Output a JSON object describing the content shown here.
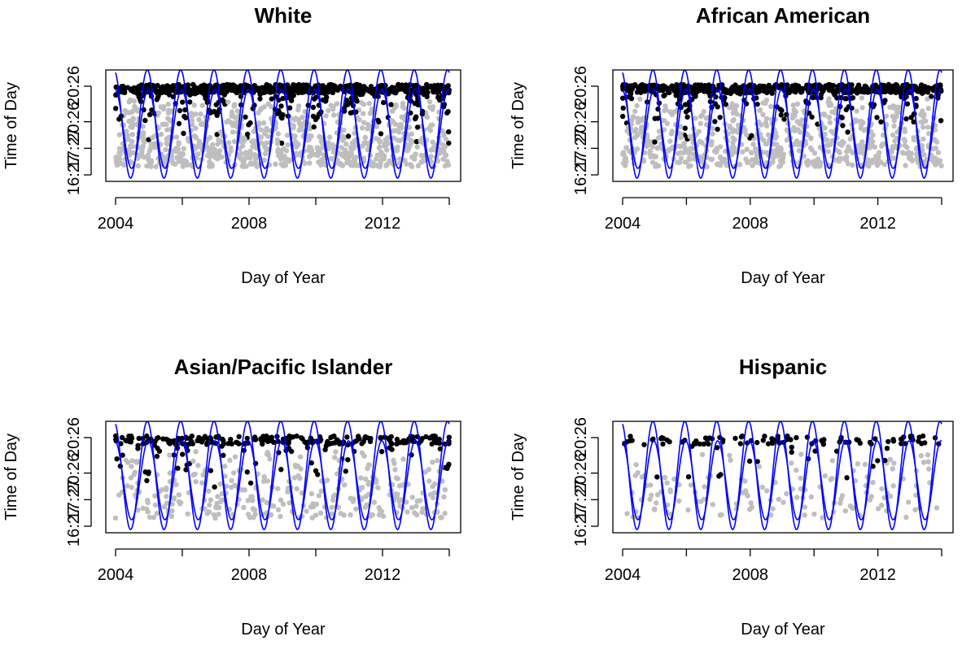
{
  "chart_data": [
    {
      "type": "scatter",
      "title": "White",
      "xlabel": "Day of Year",
      "ylabel": "Time of Day",
      "x_ticks": [
        "2004",
        "2008",
        "2012"
      ],
      "y_ticks": [
        "16:27",
        "20:26"
      ],
      "y_ticks_inner": [
        "17:27",
        "20:26"
      ],
      "xlim": [
        2004,
        2014
      ],
      "grid": false,
      "series": [
        {
          "color": "#000000",
          "density": 0.95
        },
        {
          "color": "#bebebe",
          "density": 0.95
        },
        {
          "color": "#0000ff"
        }
      ]
    },
    {
      "type": "scatter",
      "title": "African American",
      "xlabel": "Day of Year",
      "ylabel": "Time of Day",
      "x_ticks": [
        "2004",
        "2008",
        "2012"
      ],
      "y_ticks": [
        "16:27",
        "20:26"
      ],
      "y_ticks_inner": [
        "17:27",
        "20:26"
      ],
      "xlim": [
        2004,
        2014
      ],
      "grid": false,
      "series": [
        {
          "color": "#000000",
          "density": 0.8
        },
        {
          "color": "#bebebe",
          "density": 0.8
        },
        {
          "color": "#0000ff"
        }
      ]
    },
    {
      "type": "scatter",
      "title": "Asian/Pacific Islander",
      "xlabel": "Day of Year",
      "ylabel": "Time of Day",
      "x_ticks": [
        "2004",
        "2008",
        "2012"
      ],
      "y_ticks": [
        "16:27",
        "20:26"
      ],
      "y_ticks_inner": [
        "17:27",
        "20:26"
      ],
      "xlim": [
        2004,
        2014
      ],
      "grid": false,
      "series": [
        {
          "color": "#000000",
          "density": 0.35
        },
        {
          "color": "#bebebe",
          "density": 0.35
        },
        {
          "color": "#0000ff"
        }
      ]
    },
    {
      "type": "scatter",
      "title": "Hispanic",
      "xlabel": "Day of Year",
      "ylabel": "Time of Day",
      "x_ticks": [
        "2004",
        "2008",
        "2012"
      ],
      "y_ticks": [
        "16:27",
        "20:26"
      ],
      "y_ticks_inner": [
        "17:27",
        "20:26"
      ],
      "xlim": [
        2004,
        2014
      ],
      "grid": false,
      "series": [
        {
          "color": "#000000",
          "density": 0.15
        },
        {
          "color": "#bebebe",
          "density": 0.15
        },
        {
          "color": "#0000ff"
        }
      ]
    }
  ]
}
